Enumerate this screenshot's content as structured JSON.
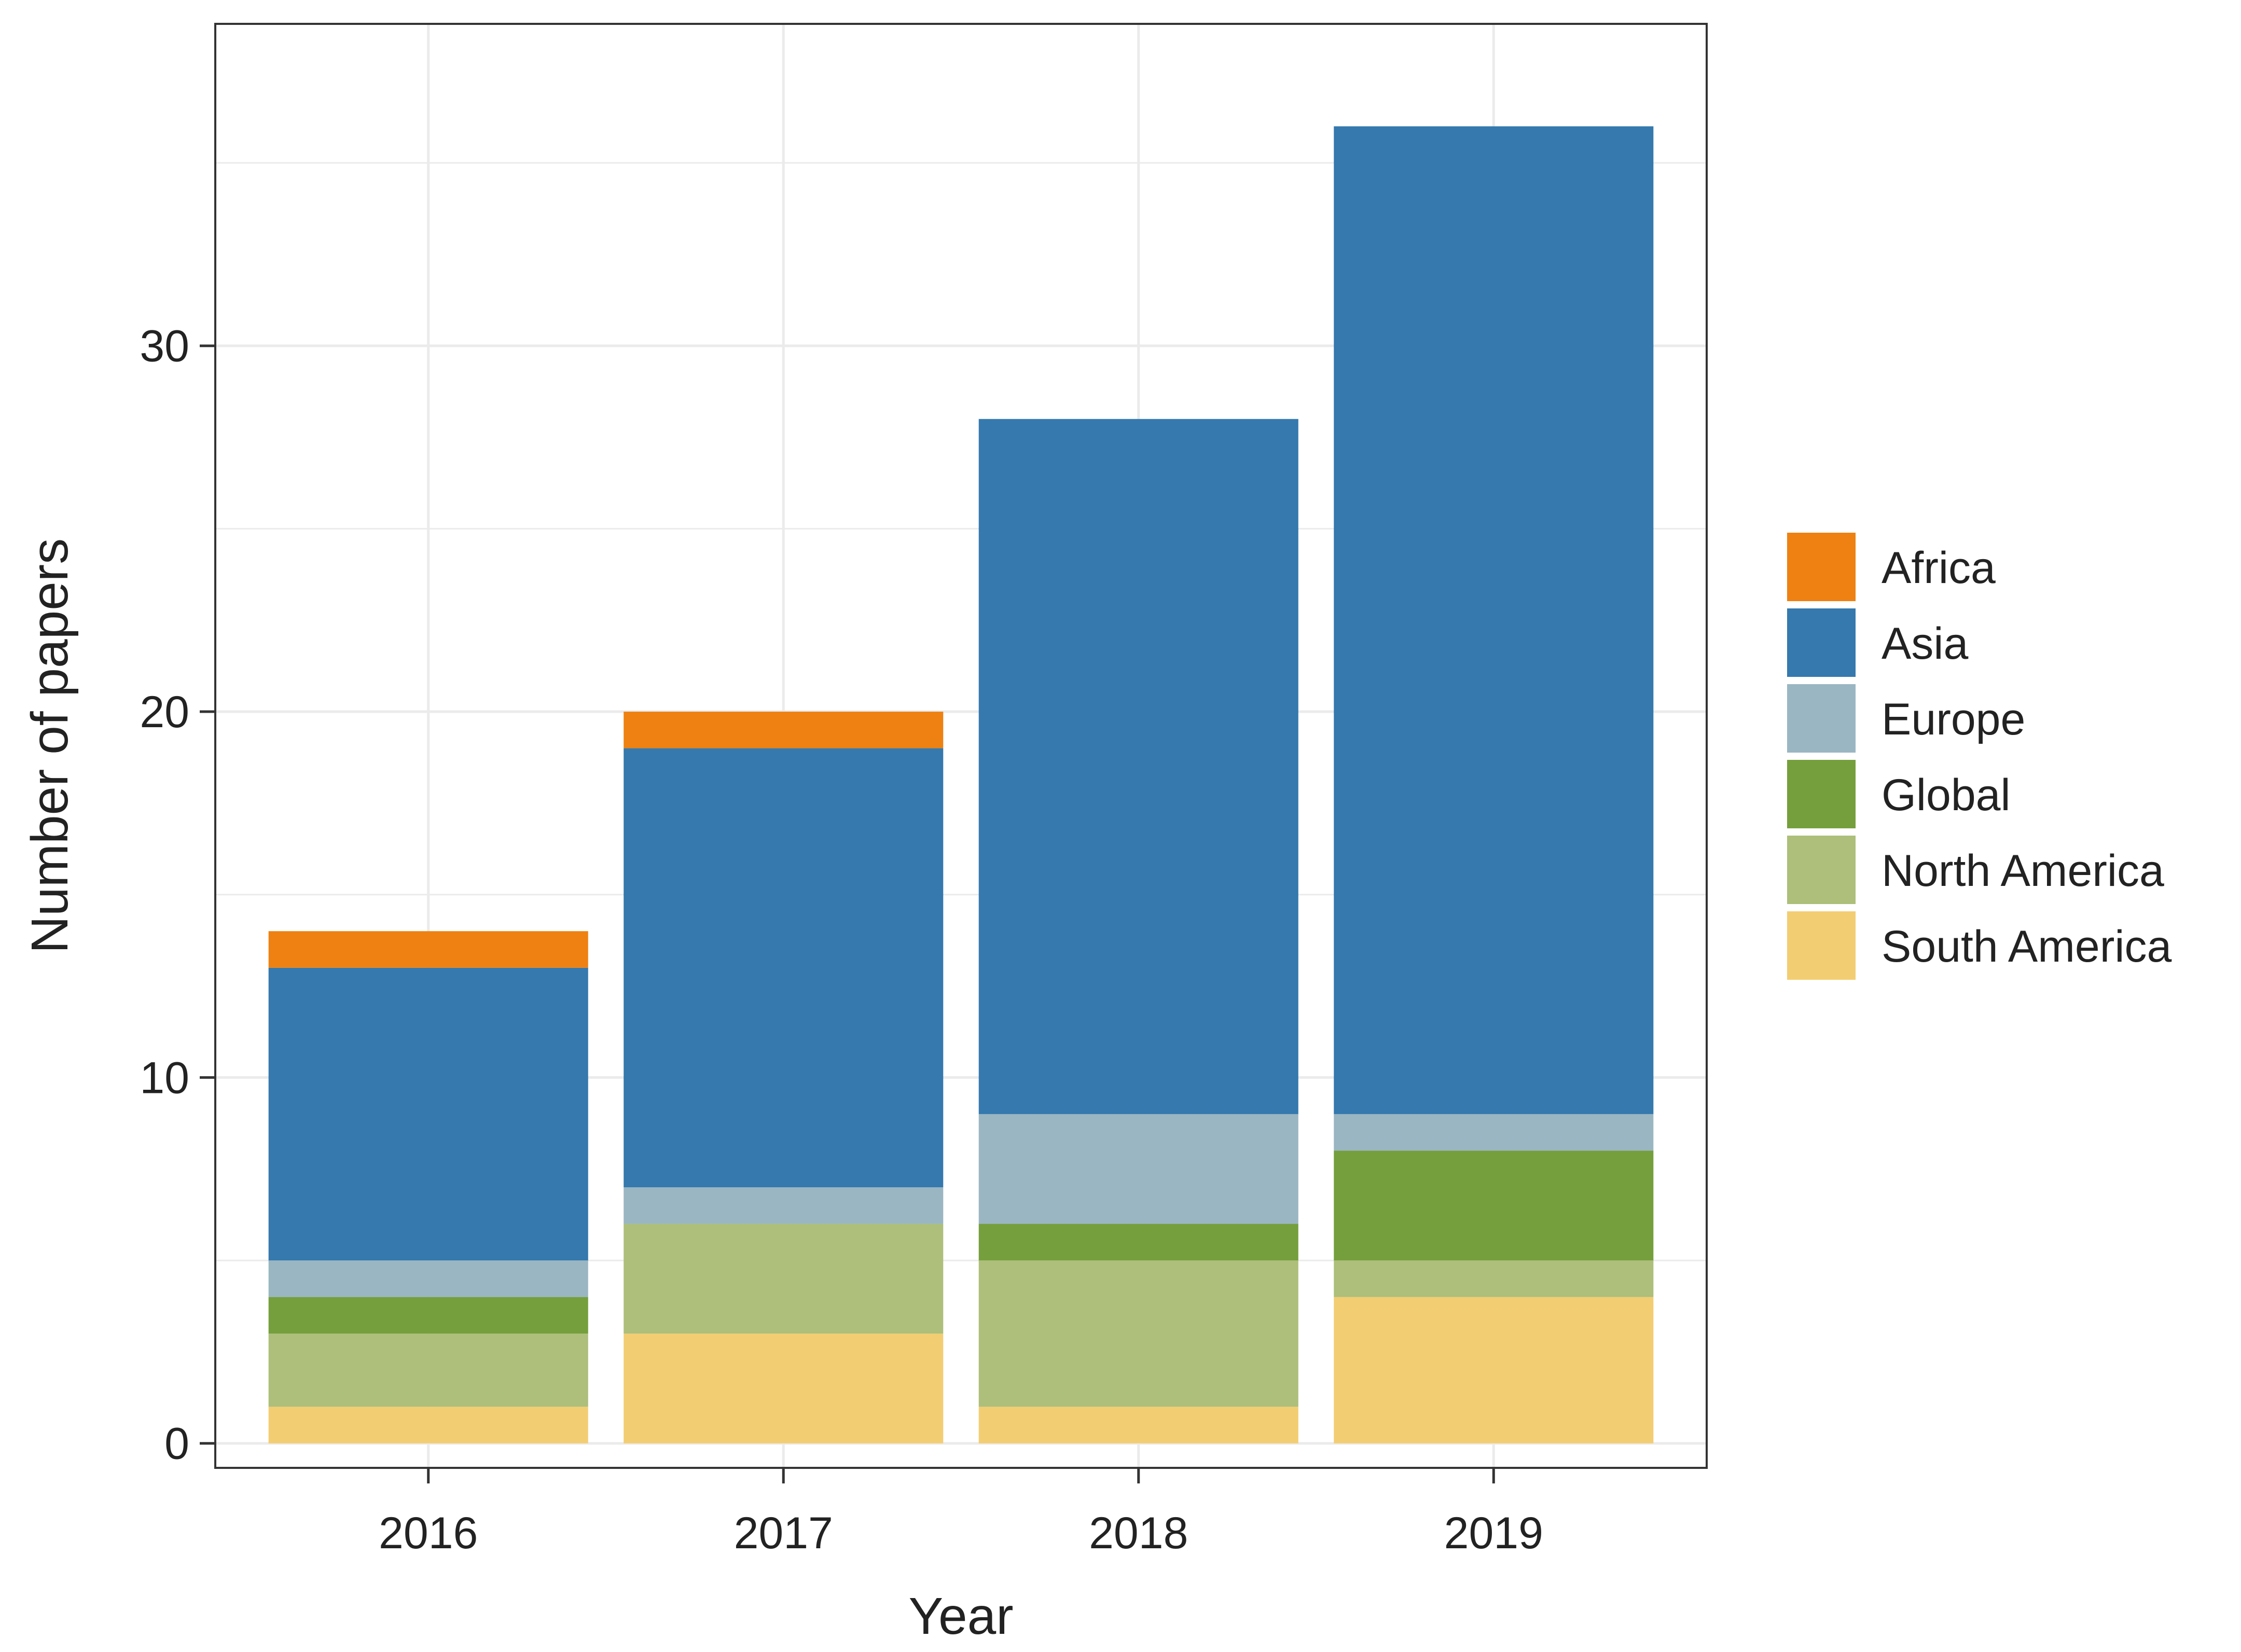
{
  "chart_data": {
    "type": "bar",
    "stacked": true,
    "xlabel": "Year",
    "ylabel": "Number of papers",
    "categories": [
      "2016",
      "2017",
      "2018",
      "2019"
    ],
    "ylim": [
      -0.67,
      38.8
    ],
    "yticks": [
      0,
      10,
      20,
      30
    ],
    "grid": true,
    "legend_position": "right",
    "series": [
      {
        "name": "South America",
        "color": "#F3CD72",
        "values": [
          1,
          3,
          1,
          4
        ]
      },
      {
        "name": "North America",
        "color": "#ADBF7A",
        "values": [
          2,
          3,
          4,
          1
        ]
      },
      {
        "name": "Global",
        "color": "#759F3C",
        "values": [
          1,
          0,
          1,
          3
        ]
      },
      {
        "name": "Europe",
        "color": "#9AB6C2",
        "values": [
          1,
          1,
          3,
          1
        ]
      },
      {
        "name": "Asia",
        "color": "#3579AE",
        "values": [
          8,
          12,
          19,
          27
        ]
      },
      {
        "name": "Africa",
        "color": "#EE8111",
        "values": [
          1,
          1,
          0,
          0
        ]
      }
    ],
    "legend_order": [
      "Africa",
      "Asia",
      "Europe",
      "Global",
      "North America",
      "South America"
    ]
  }
}
